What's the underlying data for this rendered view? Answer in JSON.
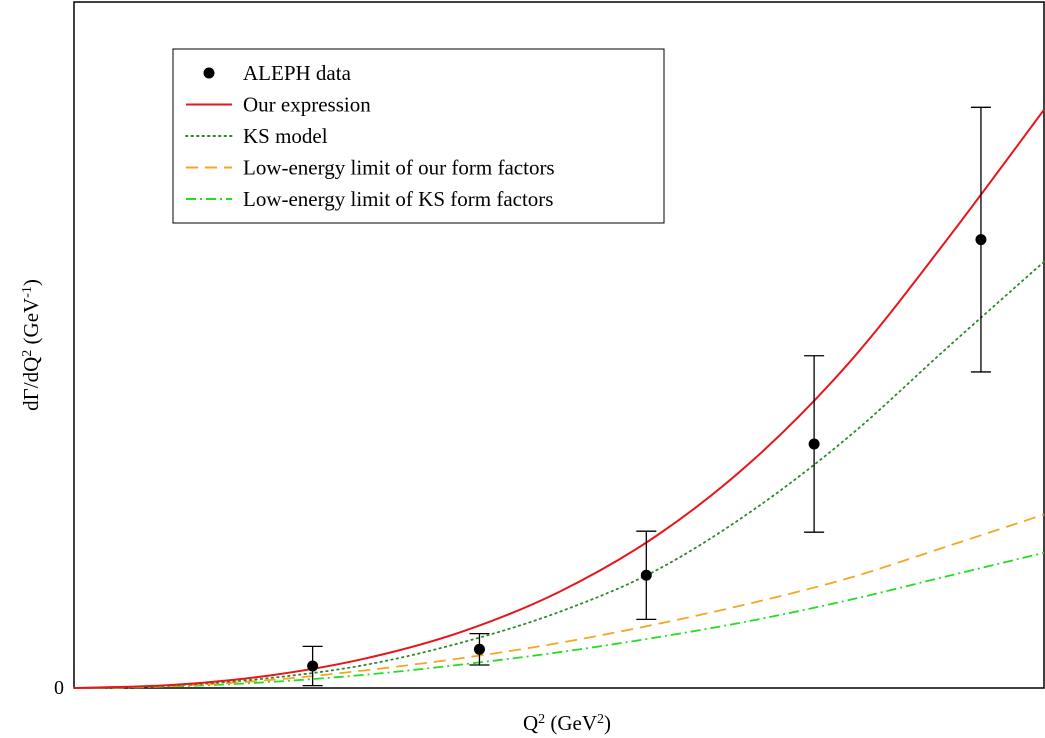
{
  "chart_data": {
    "type": "line",
    "title": "",
    "xlabel": "Q",
    "xlabel_sup": "2",
    "xlabel_unit_open": " (GeV",
    "xlabel_unit_sup": "2",
    "xlabel_unit_close": ")",
    "ylabel": "dΓ/dQ",
    "ylabel_sup": "2",
    "ylabel_unit_open": " (GeV",
    "ylabel_unit_sup": "-1",
    "ylabel_unit_close": ")",
    "y_tick_label": "0",
    "xlim": [
      0,
      1
    ],
    "ylim": [
      0,
      1
    ],
    "legend_position": "top-left",
    "scatter": {
      "name": "ALEPH data",
      "color": "#000000",
      "points": [
        {
          "x": 0.246,
          "y": 0.0321,
          "err_low": 0.0286,
          "err_high": 0.0286
        },
        {
          "x": 0.418,
          "y": 0.0564,
          "err_low": 0.0229,
          "err_high": 0.0229
        },
        {
          "x": 0.59,
          "y": 0.1643,
          "err_low": 0.0643,
          "err_high": 0.0643
        },
        {
          "x": 0.763,
          "y": 0.3557,
          "err_low": 0.1286,
          "err_high": 0.1286
        },
        {
          "x": 0.935,
          "y": 0.6536,
          "err_low": 0.1929,
          "err_high": 0.1929
        }
      ]
    },
    "series": [
      {
        "name": "Our expression",
        "color": "#e8151b",
        "dash": "",
        "x": [
          0,
          0.1,
          0.2,
          0.3,
          0.4,
          0.5,
          0.6,
          0.7,
          0.8,
          0.9,
          1.0
        ],
        "y": [
          0,
          0.0043,
          0.0179,
          0.0429,
          0.0821,
          0.14,
          0.2214,
          0.3321,
          0.4757,
          0.6536,
          0.8429
        ]
      },
      {
        "name": "KS model",
        "color": "#2a8a2a",
        "dash": "1.5,4",
        "x": [
          0,
          0.1,
          0.2,
          0.3,
          0.4,
          0.5,
          0.6,
          0.7,
          0.8,
          0.9,
          1.0
        ],
        "y": [
          0,
          0.0036,
          0.0143,
          0.0336,
          0.0664,
          0.1107,
          0.1714,
          0.2593,
          0.3679,
          0.4957,
          0.6214
        ]
      },
      {
        "name": "Low-energy limit of our form factors",
        "color": "#f5a623",
        "dash": "12,7",
        "x": [
          0,
          0.1,
          0.2,
          0.3,
          0.4,
          0.5,
          0.6,
          0.7,
          0.8,
          0.9,
          1.0
        ],
        "y": [
          0,
          0.0029,
          0.0114,
          0.0257,
          0.0436,
          0.0657,
          0.0929,
          0.1243,
          0.1607,
          0.2064,
          0.2529
        ]
      },
      {
        "name": "Low-energy limit of KS form factors",
        "color": "#22dd22",
        "dash": "10,4,2,4",
        "x": [
          0,
          0.1,
          0.2,
          0.3,
          0.4,
          0.5,
          0.6,
          0.7,
          0.8,
          0.9,
          1.0
        ],
        "y": [
          0,
          0.0021,
          0.0086,
          0.0193,
          0.0343,
          0.0521,
          0.0736,
          0.0986,
          0.1286,
          0.1629,
          0.1971
        ]
      }
    ]
  }
}
